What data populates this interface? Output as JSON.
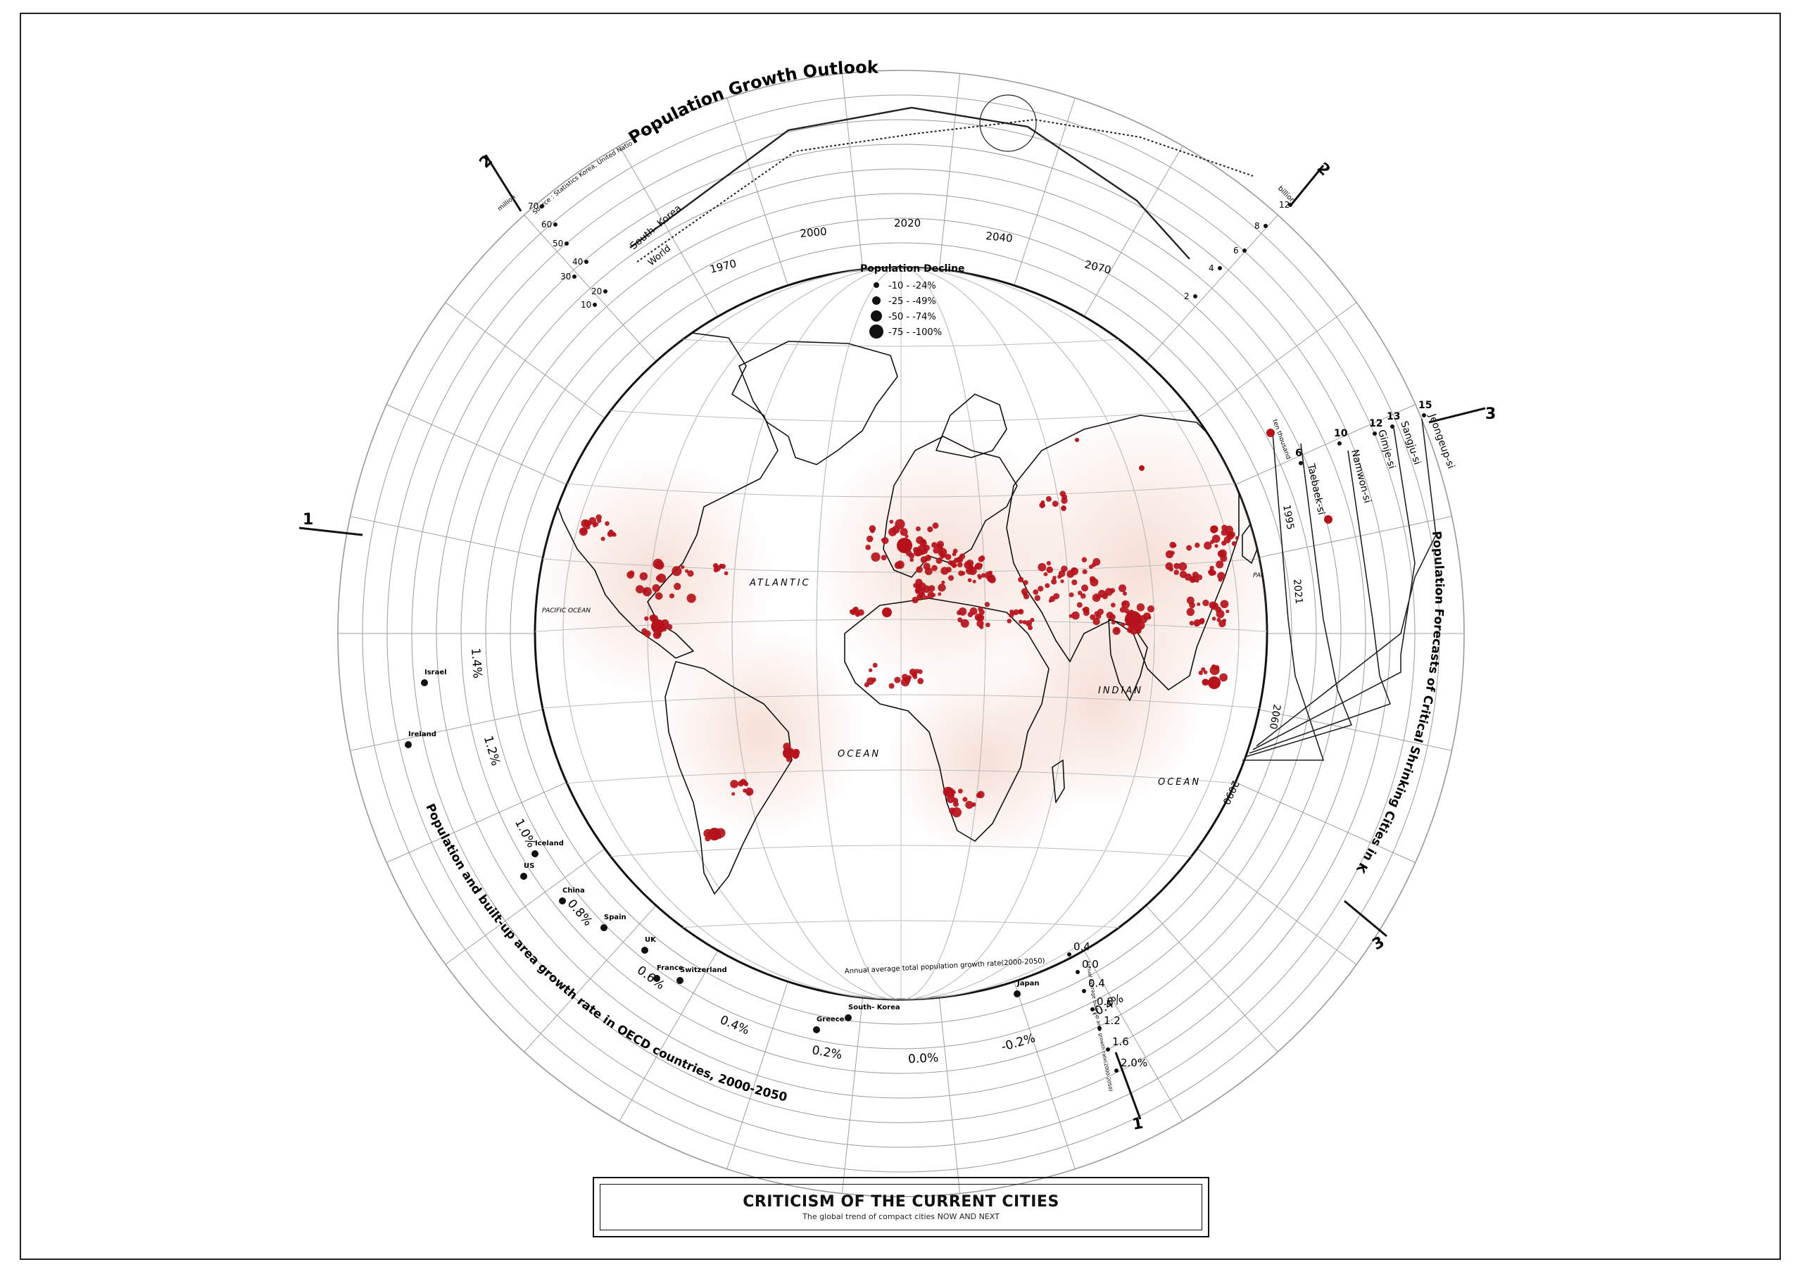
{
  "title": "CRITICISM OF THE CURRENT CITIES",
  "subtitle": "The global trend of compact cities NOW AND NEXT",
  "growth_outlook": {
    "heading": "Population Growth Outlook",
    "source": "Source : Statistics Korea, United Nations",
    "years": [
      "1970",
      "2000",
      "2020",
      "2040",
      "2070"
    ],
    "left_unit": "million",
    "left_ticks": [
      "10",
      "20",
      "30",
      "40",
      "50",
      "60",
      "70"
    ],
    "right_unit": "billion",
    "right_ticks": [
      "2",
      "4",
      "6",
      "8",
      "12"
    ],
    "series": [
      {
        "name": "South- Korea",
        "style": "solid",
        "values": [
          32,
          47,
          51.8,
          51,
          38
        ]
      },
      {
        "name": "World",
        "style": "dotted",
        "values": [
          3.7,
          6.1,
          7.8,
          9.2,
          10.4
        ]
      }
    ]
  },
  "legend": {
    "title": "Population Decline",
    "items": [
      "-10  -  -24%",
      "-25  -  -49%",
      "-50  -  -74%",
      "-75  -  -100%"
    ],
    "dot_color": "#b5121b"
  },
  "oceans": [
    "ATLANTIC",
    "PACIFIC OCEAN",
    "INDIAN",
    "OCEAN",
    "OCEAN",
    "PACIFIC OCEAN"
  ],
  "oecd": {
    "heading": "Population and built-up area growth rate in OECD countries, 2000-2050",
    "axis_labels": [
      "1.4%",
      "1.2%",
      "1.0%",
      "0.8%",
      "0.6%",
      "0.4%",
      "0.2%",
      "0.0%",
      "-0.2%",
      "-0.4%"
    ],
    "axis_caption": "Annual average total population growth rate(2000-2050)",
    "right_axis_caption": "Annual average built-up area growth rate(2000-2050)",
    "right_ticks": [
      "0.4",
      "0.0",
      "0.4",
      "0.8",
      "1.2",
      "1.6",
      "2.0%"
    ],
    "countries": [
      {
        "name": "Israel"
      },
      {
        "name": "Ireland"
      },
      {
        "name": "Iceland"
      },
      {
        "name": "US"
      },
      {
        "name": "China"
      },
      {
        "name": "Spain"
      },
      {
        "name": "UK"
      },
      {
        "name": "France"
      },
      {
        "name": "Switzerland"
      },
      {
        "name": "Greece"
      },
      {
        "name": "South- Korea"
      },
      {
        "name": "Japan"
      }
    ]
  },
  "korea_forecast": {
    "heading": "Population Forecasts of Critical Shrinking Cities in Korea",
    "unit": "ten thousand",
    "years": [
      "1995",
      "2021",
      "2060",
      "2090"
    ],
    "ticks": [
      "6",
      "10",
      "12",
      "13",
      "15"
    ],
    "cities": [
      "Taebaek-si",
      "Namwon-si",
      "Gimje-si",
      "Sangju-si",
      "Jeongeup-si"
    ]
  },
  "section_markers": [
    "1",
    "2",
    "2",
    "3",
    "3",
    "1"
  ],
  "colors": {
    "accent": "#b5121b",
    "line": "#111111",
    "grid": "#8a8a8a"
  }
}
